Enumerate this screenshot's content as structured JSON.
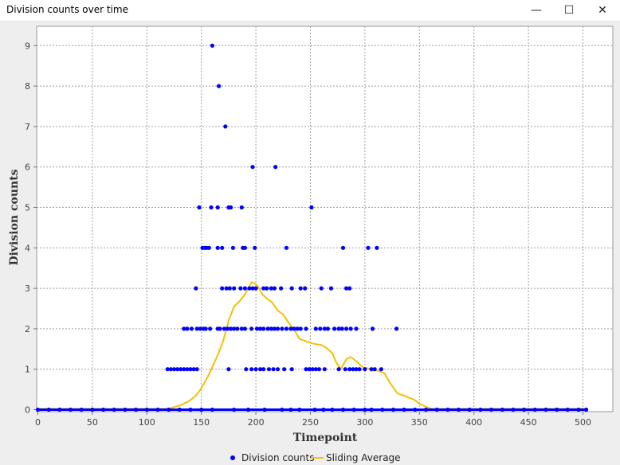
{
  "window": {
    "title": "Division counts over time",
    "minimize_glyph": "—",
    "maximize_glyph": "☐",
    "close_glyph": "✕"
  },
  "colors": {
    "points": "#0000ff",
    "line": "#f5c000",
    "plot_bg": "#ffffff",
    "grid": "#a0a0a0",
    "panel_bg": "#eeeeee"
  },
  "chart_data": {
    "type": "scatter",
    "title": "",
    "xlabel": "Timepoint",
    "ylabel": "Division counts",
    "xlim": [
      0,
      530
    ],
    "ylim": [
      0,
      9.4
    ],
    "x_ticks": [
      0,
      50,
      100,
      150,
      200,
      250,
      300,
      350,
      400,
      450,
      500
    ],
    "y_ticks": [
      0,
      1,
      2,
      3,
      4,
      5,
      6,
      7,
      8,
      9
    ],
    "grid": true,
    "legend": "bottom-center",
    "series": [
      {
        "name": "Division counts",
        "kind": "points",
        "points": [
          [
            160,
            9
          ],
          [
            166,
            8
          ],
          [
            172,
            7
          ],
          [
            197,
            6
          ],
          [
            218,
            6
          ],
          [
            148,
            5
          ],
          [
            159,
            5
          ],
          [
            165,
            5
          ],
          [
            175,
            5
          ],
          [
            177,
            5
          ],
          [
            187,
            5
          ],
          [
            251,
            5
          ],
          [
            151,
            4
          ],
          [
            153,
            4
          ],
          [
            155,
            4
          ],
          [
            157,
            4
          ],
          [
            165,
            4
          ],
          [
            169,
            4
          ],
          [
            179,
            4
          ],
          [
            188,
            4
          ],
          [
            190,
            4
          ],
          [
            199,
            4
          ],
          [
            228,
            4
          ],
          [
            280,
            4
          ],
          [
            303,
            4
          ],
          [
            311,
            4
          ],
          [
            145,
            3
          ],
          [
            169,
            3
          ],
          [
            173,
            3
          ],
          [
            176,
            3
          ],
          [
            180,
            3
          ],
          [
            186,
            3
          ],
          [
            190,
            3
          ],
          [
            194,
            3
          ],
          [
            197,
            3
          ],
          [
            200,
            3
          ],
          [
            207,
            3
          ],
          [
            210,
            3
          ],
          [
            214,
            3
          ],
          [
            217,
            3
          ],
          [
            223,
            3
          ],
          [
            233,
            3
          ],
          [
            241,
            3
          ],
          [
            245,
            3
          ],
          [
            260,
            3
          ],
          [
            269,
            3
          ],
          [
            283,
            3
          ],
          [
            286,
            3
          ],
          [
            134,
            2
          ],
          [
            137,
            2
          ],
          [
            141,
            2
          ],
          [
            146,
            2
          ],
          [
            149,
            2
          ],
          [
            152,
            2
          ],
          [
            154,
            2
          ],
          [
            158,
            2
          ],
          [
            165,
            2
          ],
          [
            167,
            2
          ],
          [
            171,
            2
          ],
          [
            174,
            2
          ],
          [
            177,
            2
          ],
          [
            180,
            2
          ],
          [
            183,
            2
          ],
          [
            187,
            2
          ],
          [
            190,
            2
          ],
          [
            196,
            2
          ],
          [
            201,
            2
          ],
          [
            204,
            2
          ],
          [
            207,
            2
          ],
          [
            211,
            2
          ],
          [
            214,
            2
          ],
          [
            217,
            2
          ],
          [
            220,
            2
          ],
          [
            224,
            2
          ],
          [
            228,
            2
          ],
          [
            232,
            2
          ],
          [
            235,
            2
          ],
          [
            238,
            2
          ],
          [
            241,
            2
          ],
          [
            246,
            2
          ],
          [
            255,
            2
          ],
          [
            259,
            2
          ],
          [
            263,
            2
          ],
          [
            266,
            2
          ],
          [
            272,
            2
          ],
          [
            276,
            2
          ],
          [
            279,
            2
          ],
          [
            283,
            2
          ],
          [
            287,
            2
          ],
          [
            292,
            2
          ],
          [
            307,
            2
          ],
          [
            329,
            2
          ],
          [
            119,
            1
          ],
          [
            122,
            1
          ],
          [
            125,
            1
          ],
          [
            128,
            1
          ],
          [
            131,
            1
          ],
          [
            134,
            1
          ],
          [
            137,
            1
          ],
          [
            140,
            1
          ],
          [
            143,
            1
          ],
          [
            146,
            1
          ],
          [
            175,
            1
          ],
          [
            191,
            1
          ],
          [
            196,
            1
          ],
          [
            200,
            1
          ],
          [
            204,
            1
          ],
          [
            207,
            1
          ],
          [
            212,
            1
          ],
          [
            216,
            1
          ],
          [
            220,
            1
          ],
          [
            226,
            1
          ],
          [
            233,
            1
          ],
          [
            246,
            1
          ],
          [
            249,
            1
          ],
          [
            252,
            1
          ],
          [
            255,
            1
          ],
          [
            258,
            1
          ],
          [
            263,
            1
          ],
          [
            276,
            1
          ],
          [
            282,
            1
          ],
          [
            286,
            1
          ],
          [
            289,
            1
          ],
          [
            292,
            1
          ],
          [
            295,
            1
          ],
          [
            300,
            1
          ],
          [
            306,
            1
          ],
          [
            309,
            1
          ],
          [
            315,
            1
          ],
          [
            0,
            0
          ],
          [
            10,
            0
          ],
          [
            20,
            0
          ],
          [
            30,
            0
          ],
          [
            40,
            0
          ],
          [
            50,
            0
          ],
          [
            60,
            0
          ],
          [
            70,
            0
          ],
          [
            80,
            0
          ],
          [
            90,
            0
          ],
          [
            100,
            0
          ],
          [
            110,
            0
          ],
          [
            120,
            0
          ],
          [
            130,
            0
          ],
          [
            140,
            0
          ],
          [
            150,
            0
          ],
          [
            160,
            0
          ],
          [
            180,
            0
          ],
          [
            193,
            0
          ],
          [
            208,
            0
          ],
          [
            224,
            0
          ],
          [
            232,
            0
          ],
          [
            240,
            0
          ],
          [
            254,
            0
          ],
          [
            262,
            0
          ],
          [
            270,
            0
          ],
          [
            280,
            0
          ],
          [
            290,
            0
          ],
          [
            300,
            0
          ],
          [
            306,
            0
          ],
          [
            316,
            0
          ],
          [
            326,
            0
          ],
          [
            336,
            0
          ],
          [
            346,
            0
          ],
          [
            356,
            0
          ],
          [
            366,
            0
          ],
          [
            376,
            0
          ],
          [
            386,
            0
          ],
          [
            396,
            0
          ],
          [
            406,
            0
          ],
          [
            416,
            0
          ],
          [
            426,
            0
          ],
          [
            436,
            0
          ],
          [
            446,
            0
          ],
          [
            456,
            0
          ],
          [
            466,
            0
          ],
          [
            476,
            0
          ],
          [
            486,
            0
          ],
          [
            496,
            0
          ],
          [
            503,
            0
          ]
        ]
      },
      {
        "name": "Sliding Average",
        "kind": "line",
        "points": [
          [
            0,
            0.02
          ],
          [
            118,
            0.02
          ],
          [
            122,
            0.04
          ],
          [
            130,
            0.1
          ],
          [
            138,
            0.2
          ],
          [
            144,
            0.32
          ],
          [
            148,
            0.45
          ],
          [
            152,
            0.62
          ],
          [
            156,
            0.82
          ],
          [
            160,
            1.05
          ],
          [
            165,
            1.35
          ],
          [
            170,
            1.7
          ],
          [
            175,
            2.2
          ],
          [
            180,
            2.55
          ],
          [
            185,
            2.68
          ],
          [
            190,
            2.85
          ],
          [
            193,
            3.0
          ],
          [
            196,
            3.15
          ],
          [
            199,
            3.12
          ],
          [
            202,
            3.05
          ],
          [
            206,
            2.85
          ],
          [
            210,
            2.75
          ],
          [
            215,
            2.65
          ],
          [
            220,
            2.45
          ],
          [
            225,
            2.35
          ],
          [
            230,
            2.15
          ],
          [
            235,
            1.98
          ],
          [
            240,
            1.75
          ],
          [
            245,
            1.7
          ],
          [
            250,
            1.65
          ],
          [
            255,
            1.62
          ],
          [
            260,
            1.6
          ],
          [
            265,
            1.52
          ],
          [
            270,
            1.4
          ],
          [
            274,
            1.15
          ],
          [
            278,
            1.0
          ],
          [
            283,
            1.25
          ],
          [
            287,
            1.3
          ],
          [
            292,
            1.2
          ],
          [
            298,
            1.05
          ],
          [
            303,
            1.02
          ],
          [
            307,
            1.0
          ],
          [
            313,
            0.95
          ],
          [
            318,
            0.9
          ],
          [
            322,
            0.7
          ],
          [
            326,
            0.55
          ],
          [
            330,
            0.4
          ],
          [
            336,
            0.35
          ],
          [
            340,
            0.3
          ],
          [
            345,
            0.25
          ],
          [
            350,
            0.15
          ],
          [
            356,
            0.07
          ],
          [
            362,
            0.02
          ],
          [
            503,
            0.02
          ]
        ]
      }
    ]
  }
}
